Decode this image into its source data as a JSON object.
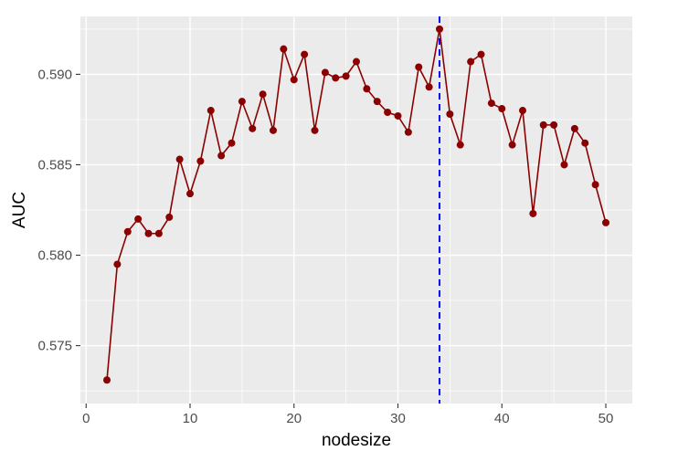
{
  "chart_data": {
    "type": "line",
    "title": "",
    "xlabel": "nodesize",
    "ylabel": "AUC",
    "xlim": [
      -0.55,
      52.55
    ],
    "ylim": [
      0.5718,
      0.5932
    ],
    "x_ticks": [
      0,
      10,
      20,
      30,
      40,
      50
    ],
    "x_tick_labels": [
      "0",
      "10",
      "20",
      "30",
      "40",
      "50"
    ],
    "y_ticks": [
      0.575,
      0.58,
      0.585,
      0.59
    ],
    "y_tick_labels": [
      "0.575",
      "0.580",
      "0.585",
      "0.590"
    ],
    "grid": true,
    "series": [
      {
        "color": "#8b0000",
        "marker": "circle",
        "x": [
          2,
          3,
          4,
          5,
          6,
          7,
          8,
          9,
          10,
          11,
          12,
          13,
          14,
          15,
          16,
          17,
          18,
          19,
          20,
          21,
          22,
          23,
          24,
          25,
          26,
          27,
          28,
          29,
          30,
          31,
          32,
          33,
          34,
          35,
          36,
          37,
          38,
          39,
          40,
          41,
          42,
          43,
          44,
          45,
          46,
          47,
          48,
          49,
          50
        ],
        "y": [
          0.5731,
          0.5795,
          0.5813,
          0.582,
          0.5812,
          0.5812,
          0.5821,
          0.5853,
          0.5834,
          0.5852,
          0.588,
          0.5855,
          0.5862,
          0.5885,
          0.587,
          0.5889,
          0.5869,
          0.5914,
          0.5897,
          0.5911,
          0.5869,
          0.5901,
          0.5898,
          0.5899,
          0.5907,
          0.5892,
          0.5885,
          0.5879,
          0.5877,
          0.5868,
          0.5904,
          0.5893,
          0.5925,
          0.5878,
          0.5861,
          0.5907,
          0.5911,
          0.5884,
          0.5881,
          0.5861,
          0.588,
          0.5823,
          0.5872,
          0.5872,
          0.585,
          0.587,
          0.5862,
          0.5839,
          0.5818
        ]
      }
    ],
    "vline": {
      "x": 34,
      "color": "#0000ff",
      "style": "dashed"
    },
    "panel_background": "#ebebeb",
    "grid_color": "#ffffff"
  }
}
